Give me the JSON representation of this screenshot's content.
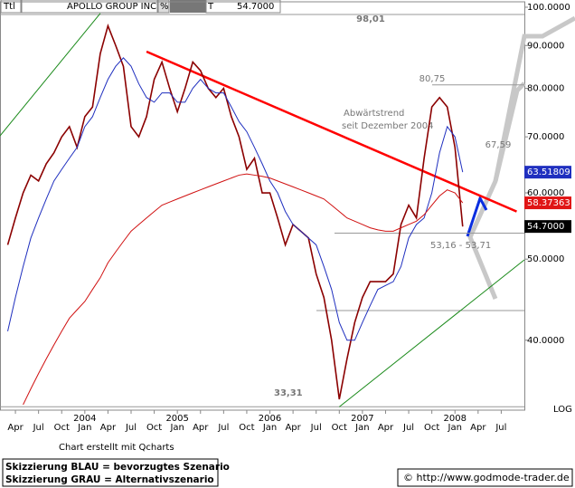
{
  "header": {
    "ttl": "Ttl",
    "name": "APOLLO GROUP INC",
    "pct": "%",
    "t": "T",
    "last": "54.7000"
  },
  "chart_data": {
    "type": "line",
    "x": [
      "2003-03",
      "2003-04",
      "2003-05",
      "2003-06",
      "2003-07",
      "2003-08",
      "2003-09",
      "2003-10",
      "2003-11",
      "2003-12",
      "2004-01",
      "2004-02",
      "2004-03",
      "2004-04",
      "2004-05",
      "2004-06",
      "2004-07",
      "2004-08",
      "2004-09",
      "2004-10",
      "2004-11",
      "2004-12",
      "2005-01",
      "2005-02",
      "2005-03",
      "2005-04",
      "2005-05",
      "2005-06",
      "2005-07",
      "2005-08",
      "2005-09",
      "2005-10",
      "2005-11",
      "2005-12",
      "2006-01",
      "2006-02",
      "2006-03",
      "2006-04",
      "2006-05",
      "2006-06",
      "2006-07",
      "2006-08",
      "2006-09",
      "2006-10",
      "2006-11",
      "2006-12",
      "2007-01",
      "2007-02",
      "2007-03",
      "2007-04",
      "2007-05",
      "2007-06",
      "2007-07",
      "2007-08",
      "2007-09",
      "2007-10",
      "2007-11",
      "2007-12",
      "2008-01",
      "2008-02"
    ],
    "series": [
      {
        "color": "#8b0000",
        "last_label": "54.7000",
        "values": [
          52,
          56,
          60,
          63,
          62,
          65,
          67,
          70,
          72,
          68,
          74,
          76,
          88,
          95,
          90,
          85,
          72,
          70,
          74,
          82,
          86,
          80,
          75,
          80,
          86,
          84,
          80,
          78,
          80,
          74,
          70,
          64,
          66,
          60,
          60,
          56,
          52,
          55,
          54,
          53,
          48,
          45,
          40,
          34,
          38,
          42,
          45,
          47,
          47,
          47,
          48,
          55,
          58,
          56,
          66,
          76,
          78,
          76,
          68,
          54.7
        ]
      },
      {
        "color": "#1f2fbf",
        "values": [
          41,
          45,
          49,
          53,
          56,
          59,
          62,
          64,
          66,
          68,
          72,
          74,
          78,
          82,
          85,
          87,
          85,
          81,
          78,
          77,
          79,
          79,
          77,
          77,
          80,
          82,
          80,
          79,
          79,
          76,
          73,
          71,
          68,
          65,
          62,
          60,
          57,
          55,
          54,
          53,
          52,
          49,
          46,
          42,
          40,
          40,
          42,
          44,
          46,
          46.5,
          47,
          49,
          53,
          55,
          56,
          60,
          67,
          72,
          70,
          63.51809
        ]
      },
      {
        "color": "#d01010",
        "values": [
          null,
          null,
          33.5,
          35,
          36.5,
          38,
          39.5,
          41,
          42.5,
          43.5,
          44.5,
          46,
          47.5,
          49.5,
          51,
          52.5,
          54,
          55,
          56,
          57,
          58,
          58.5,
          59,
          59.5,
          60,
          60.5,
          61,
          61.5,
          62,
          62.5,
          63,
          63.2,
          63,
          62.8,
          62.5,
          62,
          61.5,
          61,
          60.5,
          60,
          59.5,
          59,
          58,
          57,
          56,
          55.5,
          55,
          54.5,
          54.2,
          54,
          54,
          54.5,
          55,
          55.5,
          56.5,
          58,
          59.5,
          60.5,
          60,
          58.37363
        ]
      }
    ],
    "log_scale": true,
    "xlim": [
      "2003-02",
      "2008-10"
    ],
    "ylim": [
      33,
      101.5
    ],
    "yticks": [
      {
        "value": 100,
        "label": "100.0000"
      },
      {
        "value": 90,
        "label": "90.0000"
      },
      {
        "value": 80,
        "label": "80.0000"
      },
      {
        "value": 70,
        "label": "70.0000"
      },
      {
        "value": 60,
        "label": "60.0000"
      },
      {
        "value": 50,
        "label": "50.0000"
      },
      {
        "value": 40,
        "label": "40.0000"
      }
    ],
    "xticks": [
      {
        "value": "2003-04",
        "label": "Apr"
      },
      {
        "value": "2003-07",
        "label": "Jul"
      },
      {
        "value": "2003-10",
        "label": "Oct"
      },
      {
        "value": "2004-01",
        "label": "Jan"
      },
      {
        "value": "2004-04",
        "label": "Apr"
      },
      {
        "value": "2004-07",
        "label": "Jul"
      },
      {
        "value": "2004-10",
        "label": "Oct"
      },
      {
        "value": "2005-01",
        "label": "Jan"
      },
      {
        "value": "2005-04",
        "label": "Apr"
      },
      {
        "value": "2005-07",
        "label": "Jul"
      },
      {
        "value": "2005-10",
        "label": "Oct"
      },
      {
        "value": "2006-01",
        "label": "Jan"
      },
      {
        "value": "2006-04",
        "label": "Apr"
      },
      {
        "value": "2006-07",
        "label": "Jul"
      },
      {
        "value": "2006-10",
        "label": "Oct"
      },
      {
        "value": "2007-01",
        "label": "Jan"
      },
      {
        "value": "2007-04",
        "label": "Apr"
      },
      {
        "value": "2007-07",
        "label": "Jul"
      },
      {
        "value": "2007-10",
        "label": "Oct"
      },
      {
        "value": "2008-01",
        "label": "Jan"
      },
      {
        "value": "2008-04",
        "label": "Apr"
      },
      {
        "value": "2008-07",
        "label": "Jul"
      }
    ],
    "xticks_years": [
      {
        "value": "2004-01",
        "label": "2004"
      },
      {
        "value": "2005-01",
        "label": "2005"
      },
      {
        "value": "2006-01",
        "label": "2006"
      },
      {
        "value": "2007-01",
        "label": "2007"
      },
      {
        "value": "2008-01",
        "label": "2008"
      }
    ],
    "scale_label": "LOG",
    "levels": [
      {
        "value": 98.01,
        "label": "98,01"
      },
      {
        "value": 80.75,
        "label": "80,75"
      },
      {
        "value": 67.59,
        "label": "67,59"
      },
      {
        "value": 53.71,
        "label": "53,16 - 53,71"
      },
      43.4,
      {
        "value": 33.31,
        "label": "33,31"
      }
    ],
    "trendlines": [
      {
        "color": "#ff0000",
        "x": [
          "2004-09",
          "2008-09"
        ],
        "values": [
          88.5,
          57
        ]
      },
      {
        "color": "#1a8a1a",
        "x": [
          "2006-10",
          "2008-10"
        ],
        "values": [
          33.3,
          49.9
        ]
      },
      {
        "color": "#1a8a1a",
        "x": [
          "2003-02",
          "2004-03"
        ],
        "values": [
          70.2,
          98.3
        ]
      }
    ],
    "annotation": [
      "Abwärtstrend",
      "seit Dezember 2004"
    ]
  },
  "footer": {
    "credit": "Chart erstellt mit Qcharts",
    "legend": [
      "Skizzierung BLAU = bevorzugtes Szenario",
      "Skizzierung GRAU = Alternativszenario"
    ],
    "copyright": "© http://www.godmode-trader.de"
  }
}
